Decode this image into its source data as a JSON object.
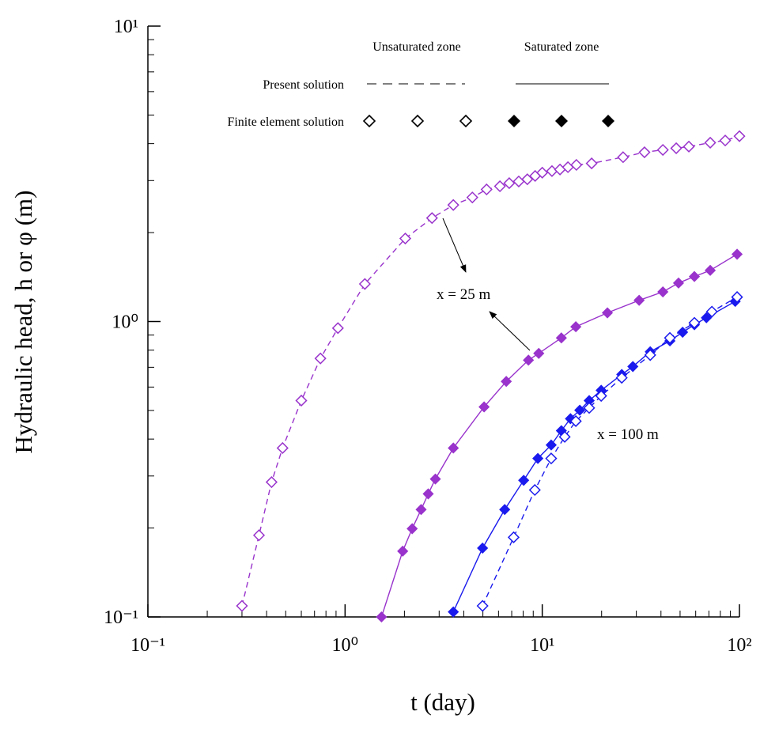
{
  "chart_data": {
    "type": "scatter",
    "xlabel": "t (day)",
    "ylabel": "Hydraulic head, h or φ (m)",
    "xscale": "log",
    "yscale": "log",
    "xlim": [
      0.1,
      100
    ],
    "ylim": [
      0.1,
      10
    ],
    "xticks": [
      {
        "value": 0.1,
        "label": "10⁻¹"
      },
      {
        "value": 1,
        "label": "10⁰"
      },
      {
        "value": 10,
        "label": "10¹"
      },
      {
        "value": 100,
        "label": "10²"
      }
    ],
    "yticks": [
      {
        "value": 0.1,
        "label": "10⁻¹"
      },
      {
        "value": 1,
        "label": "10⁰"
      },
      {
        "value": 10,
        "label": "10¹"
      }
    ],
    "legend": {
      "columns": [
        "Unsaturated zone",
        "Saturated zone"
      ],
      "rows": [
        "Present solution",
        "Finite element solution"
      ]
    },
    "annotations": [
      "x = 25 m",
      "x = 100 m"
    ],
    "series": [
      {
        "color": "#9933cc",
        "marker": "open",
        "linestyle": "dashed",
        "x": [
          0.3,
          0.366,
          0.424,
          0.482,
          0.6,
          0.75,
          0.92,
          1.26,
          2.02,
          2.76,
          3.54,
          4.42,
          5.22,
          6.1,
          6.8,
          7.6,
          8.4,
          9.2,
          10.0,
          11.2,
          12.3,
          13.5,
          14.9,
          17.8,
          25.7,
          33.0,
          40.9,
          47.8,
          55.4,
          71.1,
          84.7,
          100
        ],
        "values": [
          0.109,
          0.189,
          0.286,
          0.373,
          0.54,
          0.75,
          0.95,
          1.34,
          1.91,
          2.24,
          2.48,
          2.63,
          2.8,
          2.87,
          2.94,
          2.98,
          3.03,
          3.11,
          3.19,
          3.23,
          3.27,
          3.33,
          3.39,
          3.43,
          3.6,
          3.74,
          3.81,
          3.86,
          3.91,
          4.03,
          4.1,
          4.24
        ]
      },
      {
        "color": "#9933cc",
        "marker": "filled",
        "linestyle": "solid",
        "x": [
          1.53,
          1.96,
          2.19,
          2.43,
          2.64,
          2.87,
          3.54,
          5.07,
          6.57,
          8.51,
          9.6,
          12.5,
          14.8,
          21.4,
          31.0,
          40.9,
          49.1,
          59.1,
          71.1,
          97.3
        ],
        "values": [
          0.1,
          0.167,
          0.199,
          0.231,
          0.261,
          0.293,
          0.373,
          0.514,
          0.627,
          0.74,
          0.78,
          0.88,
          0.96,
          1.07,
          1.18,
          1.26,
          1.35,
          1.42,
          1.49,
          1.69
        ]
      },
      {
        "color": "#1a1aee",
        "marker": "filled",
        "linestyle": "solid",
        "x": [
          3.54,
          4.98,
          6.45,
          8.05,
          9.5,
          11.1,
          12.5,
          13.9,
          15.5,
          17.3,
          19.9,
          25.3,
          28.8,
          35.3,
          44.4,
          51.5,
          59.1,
          68.0,
          95.2
        ],
        "values": [
          0.104,
          0.171,
          0.231,
          0.29,
          0.344,
          0.382,
          0.427,
          0.469,
          0.501,
          0.54,
          0.585,
          0.662,
          0.704,
          0.79,
          0.86,
          0.92,
          0.975,
          1.03,
          1.17
        ]
      },
      {
        "color": "#1a1aee",
        "marker": "open",
        "linestyle": "dashed",
        "x": [
          4.98,
          7.16,
          9.17,
          11.1,
          13.0,
          14.8,
          17.3,
          19.9,
          25.3,
          35.3,
          44.4,
          59.1,
          72.5,
          97.3
        ],
        "values": [
          0.109,
          0.186,
          0.269,
          0.344,
          0.407,
          0.46,
          0.51,
          0.56,
          0.645,
          0.77,
          0.88,
          0.99,
          1.08,
          1.21
        ]
      }
    ]
  }
}
